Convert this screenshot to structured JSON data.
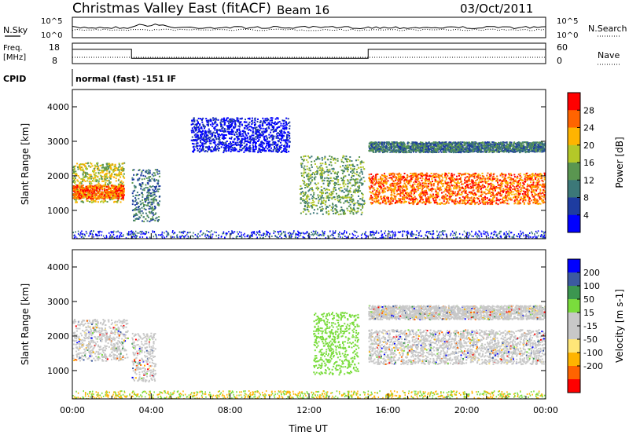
{
  "header": {
    "title": "Christmas Valley East (fitACF)",
    "beam": "Beam 16",
    "date": "03/Oct/2011"
  },
  "params": {
    "nsky_label": "N.Sky",
    "nsearch_label": "N.Search",
    "power_ticks_left": [
      "10^5",
      "10^0"
    ],
    "power_ticks_right": [
      "10^5",
      "10^0"
    ],
    "freq_label_1": "Freq.",
    "freq_label_2": "[MHz]",
    "freq_ticks": [
      "18",
      "8"
    ],
    "nave_label": "Nave",
    "nave_ticks": [
      "60",
      "0"
    ],
    "cpid_label": "CPID",
    "cpid_text": "normal (fast) -151 IF",
    "freq_series": {
      "x_hours": [
        0,
        3,
        3,
        15,
        15,
        24
      ],
      "values": [
        16,
        16,
        10,
        10,
        16,
        16
      ]
    }
  },
  "chart_data": [
    {
      "type": "heatmap",
      "name": "power",
      "ylabel": "Slant Range [km]",
      "xlabel": "Time UT",
      "xlim_hours": [
        0,
        24
      ],
      "ylim_km": [
        180,
        4500
      ],
      "xtick_labels": [
        "00:00",
        "04:00",
        "08:00",
        "12:00",
        "16:00",
        "20:00",
        "00:00"
      ],
      "ytick_labels": [
        "1000",
        "2000",
        "3000",
        "4000"
      ],
      "ytick_values": [
        1000,
        2000,
        3000,
        4000
      ],
      "colorbar": {
        "label": "Power [dB]",
        "ticks": [
          "28",
          "24",
          "20",
          "16",
          "12",
          "8",
          "4"
        ],
        "colors": [
          "#0000ff",
          "#1e3ca0",
          "#3c7878",
          "#5a9650",
          "#b4c828",
          "#ffb400",
          "#ff6400",
          "#ff0000"
        ]
      },
      "bands": [
        {
          "x0": 0,
          "x1": 2.6,
          "r0": 1250,
          "r1": 2400,
          "level": 20
        },
        {
          "x0": 0,
          "x1": 2.6,
          "r0": 1350,
          "r1": 1750,
          "level": 28
        },
        {
          "x0": 3,
          "x1": 4.4,
          "r0": 700,
          "r1": 2200,
          "level": 12
        },
        {
          "x0": 11.5,
          "x1": 14.8,
          "r0": 900,
          "r1": 2600,
          "level": 16
        },
        {
          "x0": 15,
          "x1": 24,
          "r0": 1200,
          "r1": 2100,
          "level": 28
        },
        {
          "x0": 15,
          "x1": 24,
          "r0": 2700,
          "r1": 3000,
          "level": 12
        },
        {
          "x0": 6,
          "x1": 11,
          "r0": 2700,
          "r1": 3700,
          "level": 4
        }
      ]
    },
    {
      "type": "heatmap",
      "name": "velocity",
      "ylabel": "Slant Range [km]",
      "xlabel": "Time UT",
      "xlim_hours": [
        0,
        24
      ],
      "ylim_km": [
        180,
        4500
      ],
      "xtick_labels": [
        "00:00",
        "04:00",
        "08:00",
        "12:00",
        "16:00",
        "20:00",
        "00:00"
      ],
      "ytick_labels": [
        "1000",
        "2000",
        "3000",
        "4000"
      ],
      "ytick_values": [
        1000,
        2000,
        3000,
        4000
      ],
      "colorbar": {
        "label": "Velocity [m s-1]",
        "ticks": [
          "200",
          "100",
          "50",
          "15",
          "-15",
          "-50",
          "-100",
          "-200"
        ],
        "colors": [
          "#ff0000",
          "#ff6400",
          "#ffb400",
          "#ffe678",
          "#c8c8c8",
          "#c8c8c8",
          "#7adc3c",
          "#3c9650",
          "#3c5aa0",
          "#0000ff"
        ]
      },
      "bands": [
        {
          "x0": 0,
          "x1": 2.8,
          "r0": 1300,
          "r1": 2500,
          "level": 0
        },
        {
          "x0": 3,
          "x1": 4.2,
          "r0": 700,
          "r1": 2100,
          "level": 0
        },
        {
          "x0": 12.2,
          "x1": 14.5,
          "r0": 900,
          "r1": 2700,
          "level": 40
        },
        {
          "x0": 15,
          "x1": 24,
          "r0": 1200,
          "r1": 2200,
          "level": 0
        },
        {
          "x0": 15,
          "x1": 24,
          "r0": 2500,
          "r1": 2900,
          "level": 0
        }
      ]
    }
  ]
}
